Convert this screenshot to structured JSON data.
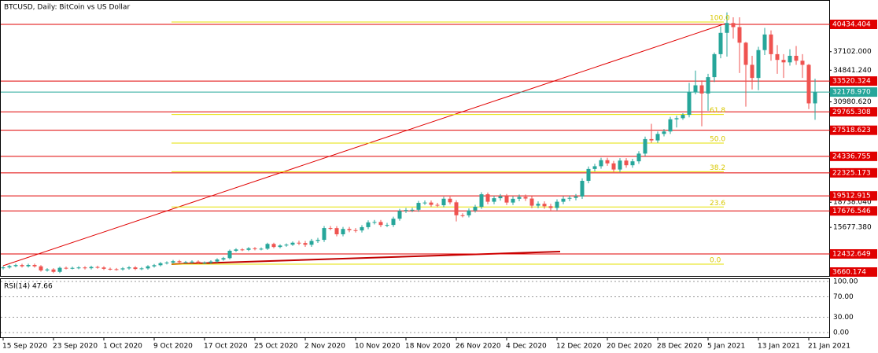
{
  "chart_data": {
    "type": "candlestick",
    "title": "BTCUSD, Daily:  BitCoin vs US Dollar",
    "up_color": "#26a69a",
    "down_color": "#ef5350",
    "ylim": [
      9651,
      43407
    ],
    "yticks": [
      {
        "value": 37102,
        "label": "37102.000"
      },
      {
        "value": 34841.24,
        "label": "34841.240"
      },
      {
        "value": 30980.62,
        "label": "30980.620"
      },
      {
        "value": 18738.04,
        "label": "18738.040"
      },
      {
        "value": 15677.38,
        "label": "15677.380"
      }
    ],
    "xlim": [
      0,
      131
    ],
    "xticks": [
      {
        "value": 0,
        "label": "15 Sep 2020"
      },
      {
        "value": 8,
        "label": "23 Sep 2020"
      },
      {
        "value": 16,
        "label": "1 Oct 2020"
      },
      {
        "value": 24,
        "label": "9 Oct 2020"
      },
      {
        "value": 32,
        "label": "17 Oct 2020"
      },
      {
        "value": 40,
        "label": "25 Oct 2020"
      },
      {
        "value": 48,
        "label": "2 Nov 2020"
      },
      {
        "value": 56,
        "label": "10 Nov 2020"
      },
      {
        "value": 64,
        "label": "18 Nov 2020"
      },
      {
        "value": 72,
        "label": "26 Nov 2020"
      },
      {
        "value": 80,
        "label": "4 Dec 2020"
      },
      {
        "value": 88,
        "label": "12 Dec 2020"
      },
      {
        "value": 96,
        "label": "20 Dec 2020"
      },
      {
        "value": 104,
        "label": "28 Dec 2020"
      },
      {
        "value": 112,
        "label": "5 Jan 2021"
      },
      {
        "value": 120,
        "label": "13 Jan 2021"
      },
      {
        "value": 128,
        "label": "21 Jan 2021"
      }
    ],
    "open": [
      10690,
      10790,
      10950,
      11080,
      10930,
      11090,
      10920,
      10420,
      10540,
      10250,
      10740,
      10700,
      10730,
      10780,
      10690,
      10840,
      10780,
      10620,
      10570,
      10550,
      10670,
      10790,
      10600,
      10670,
      10920,
      11060,
      11300,
      11380,
      11550,
      11430,
      11430,
      11500,
      11330,
      11370,
      11510,
      11750,
      11920,
      12820,
      12980,
      12930,
      13120,
      13030,
      13070,
      13650,
      13280,
      13460,
      13560,
      13800,
      13760,
      13550,
      14020,
      14150,
      15590,
      15580,
      14830,
      15480,
      15330,
      15300,
      15700,
      16280,
      16330,
      15960,
      15970,
      16730,
      17680,
      17790,
      17820,
      18660,
      18700,
      18420,
      18370,
      19170,
      18730,
      17150,
      17140,
      17730,
      18180,
      19710,
      18800,
      19230,
      19450,
      18700,
      19160,
      19380,
      19190,
      18320,
      18550,
      18250,
      18040,
      18800,
      19170,
      19270,
      19440,
      21350,
      22800,
      23130,
      23870,
      23480,
      22730,
      23820,
      23250,
      23730,
      24670,
      26440,
      26280,
      27070,
      27370,
      28860,
      28990,
      29400,
      32200,
      33000,
      32000,
      34000,
      36800,
      39400,
      40600,
      40100,
      38200,
      35500,
      33900,
      37300,
      39200,
      36800,
      36100,
      35800,
      36600,
      36000,
      35500,
      30800
    ],
    "high": [
      10940,
      11100,
      11230,
      11230,
      11240,
      11240,
      11070,
      10690,
      10690,
      10890,
      10890,
      10880,
      10930,
      10930,
      10990,
      10990,
      10930,
      10770,
      10720,
      10820,
      10940,
      10940,
      10820,
      11070,
      11210,
      11450,
      11530,
      11700,
      11700,
      11580,
      11650,
      11650,
      11520,
      11660,
      11900,
      12070,
      12970,
      13130,
      13130,
      13270,
      13270,
      13220,
      13800,
      13800,
      13610,
      13710,
      13950,
      14050,
      14010,
      14270,
      14400,
      15840,
      15840,
      15830,
      15730,
      15730,
      15580,
      15950,
      16530,
      16580,
      16580,
      16220,
      16980,
      17930,
      18040,
      18070,
      18910,
      18950,
      18950,
      18670,
      19420,
      19420,
      18980,
      17400,
      17980,
      18430,
      19960,
      19920,
      19530,
      19750,
      19750,
      19460,
      19680,
      19680,
      19490,
      18850,
      18850,
      18550,
      19100,
      19470,
      19570,
      19740,
      21650,
      23100,
      23430,
      24170,
      24170,
      23780,
      24120,
      24120,
      24030,
      24970,
      26740,
      28300,
      27370,
      27670,
      29160,
      29290,
      29600,
      33300,
      34800,
      33600,
      34400,
      37000,
      40200,
      41900,
      41300,
      41300,
      38300,
      36600,
      37700,
      40000,
      39700,
      37900,
      36800,
      37400,
      37800,
      36800,
      35600,
      33800
    ],
    "low": [
      10540,
      10640,
      10800,
      10780,
      10780,
      10770,
      10270,
      10270,
      10100,
      10100,
      10550,
      10550,
      10580,
      10540,
      10540,
      10630,
      10470,
      10420,
      10400,
      10400,
      10520,
      10450,
      10450,
      10520,
      10770,
      10910,
      11150,
      11230,
      11280,
      11280,
      11280,
      11180,
      11180,
      11220,
      11360,
      11600,
      11770,
      12670,
      12780,
      12780,
      12880,
      12880,
      12920,
      13130,
      13130,
      13310,
      13410,
      13510,
      13300,
      13300,
      13770,
      13900,
      15330,
      14580,
      14580,
      15080,
      15050,
      15050,
      15450,
      16030,
      15710,
      15710,
      15720,
      16480,
      17430,
      17540,
      17570,
      18410,
      18170,
      18120,
      18120,
      18480,
      16400,
      16890,
      16890,
      17480,
      17930,
      18500,
      18500,
      18930,
      18400,
      18400,
      18860,
      18890,
      18020,
      18020,
      17950,
      17740,
      17740,
      18500,
      18870,
      18970,
      19140,
      21050,
      22500,
      22830,
      23180,
      22430,
      22430,
      22950,
      22950,
      23430,
      24370,
      25980,
      25980,
      26770,
      27070,
      27860,
      28790,
      29100,
      31900,
      28000,
      29900,
      33400,
      36300,
      36500,
      38700,
      34500,
      30400,
      32500,
      32400,
      36700,
      36000,
      34400,
      33900,
      35400,
      35500,
      33900,
      30100,
      28800
    ],
    "close": [
      10790,
      10950,
      11080,
      10930,
      11090,
      10920,
      10420,
      10540,
      10250,
      10740,
      10700,
      10730,
      10780,
      10690,
      10840,
      10780,
      10620,
      10570,
      10550,
      10670,
      10790,
      10600,
      10670,
      10920,
      11060,
      11300,
      11380,
      11550,
      11430,
      11430,
      11500,
      11330,
      11370,
      11510,
      11750,
      11920,
      12820,
      12980,
      12930,
      13120,
      13030,
      13070,
      13650,
      13280,
      13460,
      13560,
      13800,
      13760,
      13550,
      14020,
      14150,
      15590,
      15580,
      14830,
      15480,
      15330,
      15300,
      15700,
      16280,
      16330,
      15960,
      15970,
      16730,
      17680,
      17790,
      17820,
      18660,
      18700,
      18420,
      18370,
      19170,
      18730,
      17150,
      17140,
      17730,
      18180,
      19710,
      18800,
      19230,
      19450,
      18700,
      19160,
      19380,
      19190,
      18320,
      18550,
      18250,
      18040,
      18800,
      19170,
      19270,
      19440,
      21350,
      22800,
      23130,
      23870,
      23480,
      22730,
      23820,
      23250,
      23730,
      24670,
      26440,
      26280,
      27070,
      27370,
      28860,
      28990,
      29400,
      32200,
      33000,
      32000,
      34000,
      36800,
      39400,
      40600,
      40100,
      38200,
      35500,
      33900,
      37300,
      39200,
      36800,
      36100,
      35800,
      36600,
      36000,
      35500,
      30800,
      32179
    ],
    "price_lines": [
      {
        "value": 40434.404,
        "color": "#e00000"
      },
      {
        "value": 33520.324,
        "color": "#e00000"
      },
      {
        "value": 32178.97,
        "label": "32178.970",
        "color": "#26a69a"
      },
      {
        "value": 29765.308,
        "color": "#e00000"
      },
      {
        "value": 27518.623,
        "color": "#e00000"
      },
      {
        "value": 24336.755,
        "color": "#e00000"
      },
      {
        "value": 22325.173,
        "color": "#e00000"
      },
      {
        "value": 19512.915,
        "color": "#e00000"
      },
      {
        "value": 17676.546,
        "color": "#e00000"
      },
      {
        "value": 12432.649,
        "color": "#e00000"
      },
      {
        "value": 3660.174,
        "color": "#e00000"
      }
    ],
    "fib_range": [
      11190,
      40720
    ],
    "fib_color": "#e6e000",
    "fib_levels": [
      {
        "value": 100,
        "label": "100.0"
      },
      61.8,
      {
        "value": 50,
        "label": "50.0"
      },
      38.2,
      23.6,
      {
        "value": 0,
        "label": "0.0"
      }
    ],
    "rsi_title": "RSI(14) 47.66",
    "rsi_ylim": [
      0,
      100
    ],
    "rsi_yticks": [
      {
        "value": 100,
        "label": "100.00"
      },
      {
        "value": 70,
        "label": "70.00"
      },
      {
        "value": 30,
        "label": "30.00"
      },
      {
        "value": 0,
        "label": "0.00"
      }
    ]
  }
}
